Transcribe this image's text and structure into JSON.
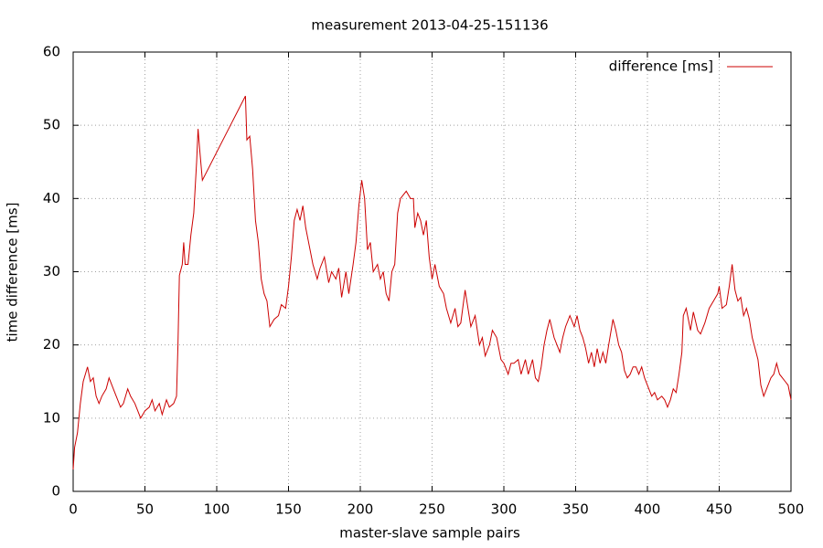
{
  "chart_data": {
    "type": "line",
    "title": "measurement 2013-04-25-151136",
    "x_label": "master-slave sample pairs",
    "y_label": "time difference [ms]",
    "x": [
      0,
      1,
      3,
      5,
      7,
      10,
      12,
      14,
      16,
      18,
      20,
      23,
      25,
      28,
      30,
      33,
      35,
      38,
      40,
      43,
      45,
      47,
      50,
      53,
      55,
      57,
      60,
      62,
      65,
      67,
      70,
      72,
      73,
      74,
      76,
      77,
      78,
      80,
      82,
      84,
      86,
      87,
      88,
      90,
      120,
      121,
      123,
      125,
      127,
      129,
      131,
      133,
      135,
      137,
      140,
      143,
      145,
      148,
      150,
      152,
      154,
      156,
      158,
      160,
      162,
      164,
      167,
      170,
      172,
      175,
      178,
      180,
      183,
      185,
      187,
      190,
      192,
      195,
      197,
      199,
      201,
      203,
      205,
      207,
      209,
      212,
      214,
      216,
      218,
      220,
      222,
      224,
      226,
      228,
      232,
      235,
      237,
      238,
      240,
      242,
      244,
      246,
      248,
      250,
      252,
      255,
      258,
      260,
      263,
      266,
      268,
      270,
      273,
      275,
      277,
      280,
      283,
      285,
      287,
      290,
      292,
      295,
      298,
      300,
      303,
      305,
      307,
      310,
      312,
      315,
      317,
      320,
      322,
      324,
      326,
      328,
      330,
      332,
      335,
      337,
      339,
      341,
      343,
      346,
      349,
      351,
      353,
      355,
      357,
      359,
      361,
      363,
      365,
      367,
      369,
      371,
      373,
      376,
      378,
      380,
      382,
      384,
      386,
      388,
      390,
      392,
      394,
      396,
      398,
      400,
      403,
      405,
      407,
      410,
      412,
      414,
      416,
      418,
      420,
      422,
      424,
      425,
      427,
      430,
      432,
      435,
      437,
      440,
      443,
      446,
      449,
      450,
      452,
      455,
      457,
      459,
      461,
      463,
      465,
      467,
      469,
      471,
      473,
      475,
      477,
      479,
      481,
      483,
      486,
      488,
      490,
      492,
      494,
      496,
      498,
      500
    ],
    "series": [
      {
        "name": "difference [ms]",
        "color": "#cc0000",
        "values": [
          3,
          6,
          8,
          12,
          15,
          17,
          15,
          15.5,
          13,
          12,
          13,
          14,
          15.5,
          14,
          13,
          11.5,
          12,
          14,
          13,
          12,
          11,
          10,
          11,
          11.5,
          12.5,
          11,
          12,
          10.5,
          12.5,
          11.5,
          12,
          13,
          20,
          29.5,
          31,
          34,
          31,
          31,
          35,
          38,
          45,
          49.5,
          47,
          42.5,
          54,
          48,
          48.5,
          44,
          37,
          34,
          29,
          27,
          26,
          22.5,
          23.5,
          24,
          25.5,
          25,
          28,
          32,
          37,
          38.5,
          37,
          39,
          36,
          34,
          31,
          29,
          30.5,
          32,
          28.5,
          30,
          29,
          30.5,
          26.5,
          30,
          27,
          31,
          34,
          39,
          42.5,
          40,
          33,
          34,
          30,
          31,
          29,
          30,
          27,
          26,
          30,
          31,
          38,
          40,
          41,
          40,
          40,
          36,
          38,
          37,
          35,
          37,
          32,
          29,
          31,
          28,
          27,
          25,
          23,
          25,
          22.5,
          23,
          27.5,
          25,
          22.5,
          24,
          20,
          21,
          18.5,
          20,
          22,
          21,
          18,
          17.5,
          16,
          17.5,
          17.5,
          18,
          16,
          18,
          16,
          18,
          15.5,
          15,
          17,
          20,
          22,
          23.5,
          21,
          20,
          19,
          21,
          22.5,
          24,
          22.5,
          24,
          22,
          21,
          19.5,
          17.5,
          19,
          17,
          19.5,
          17.5,
          19,
          17.5,
          20,
          23.5,
          22,
          20,
          19,
          16.5,
          15.5,
          16,
          17,
          17,
          16,
          17,
          15.5,
          14.5,
          13,
          13.5,
          12.5,
          13,
          12.5,
          11.5,
          12.5,
          14,
          13.5,
          16,
          19,
          24,
          25,
          22,
          24.5,
          22,
          21.5,
          23,
          25,
          26,
          27,
          28,
          25,
          25.5,
          28,
          31,
          27.5,
          26,
          26.5,
          24,
          25,
          23.5,
          21,
          19.5,
          18,
          14.5,
          13,
          14,
          15.5,
          16,
          17.5,
          16,
          15.5,
          15,
          14.5,
          12.5
        ]
      }
    ],
    "xlim": [
      0,
      500
    ],
    "ylim": [
      0,
      60
    ],
    "xticks": [
      0,
      50,
      100,
      150,
      200,
      250,
      300,
      350,
      400,
      450,
      500
    ],
    "yticks": [
      0,
      10,
      20,
      30,
      40,
      50,
      60
    ],
    "grid": true,
    "legend": "top-right"
  }
}
